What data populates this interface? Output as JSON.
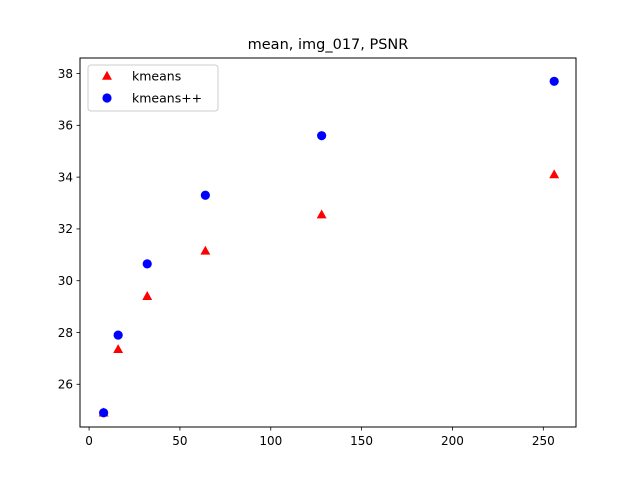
{
  "chart_data": {
    "type": "scatter",
    "title": "mean, img_017, PSNR",
    "xlabel": "",
    "ylabel": "",
    "xlim": [
      -5,
      268
    ],
    "ylim": [
      24.35,
      38.6
    ],
    "x_ticks": [
      0,
      50,
      100,
      150,
      200,
      250
    ],
    "y_ticks": [
      26,
      28,
      30,
      32,
      34,
      36,
      38
    ],
    "grid": false,
    "legend_position": "top-left",
    "series": [
      {
        "name": "kmeans",
        "marker": "triangle",
        "color": "#ff0000",
        "x": [
          8,
          16,
          32,
          64,
          128,
          256
        ],
        "y": [
          24.9,
          27.35,
          29.4,
          31.15,
          32.55,
          34.1
        ]
      },
      {
        "name": "kmeans++",
        "marker": "circle",
        "color": "#0000ff",
        "x": [
          8,
          16,
          32,
          64,
          128,
          256
        ],
        "y": [
          24.9,
          27.9,
          30.65,
          33.3,
          35.6,
          37.7
        ]
      }
    ]
  }
}
